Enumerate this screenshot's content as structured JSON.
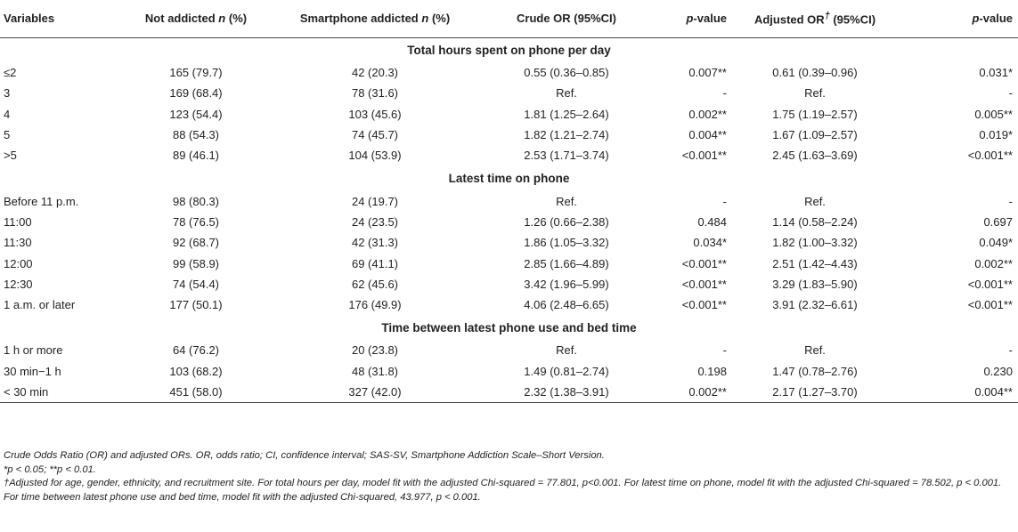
{
  "table": {
    "headers": [
      "Variables",
      "Not addicted",
      "n",
      "(%)",
      "Smartphone addicted",
      "n",
      "(%)",
      "Crude OR (95%CI)",
      "p",
      "-value",
      "Adjusted OR",
      "†",
      "(95%CI)",
      "p",
      "-value"
    ],
    "sections": [
      {
        "title": "Total hours spent on phone per day",
        "rows": [
          [
            "≤2",
            "165 (79.7)",
            "42 (20.3)",
            "0.55 (0.36–0.85)",
            "0.007**",
            "0.61 (0.39–0.96)",
            "0.031*"
          ],
          [
            "3",
            "169 (68.4)",
            "78 (31.6)",
            "Ref.",
            "-",
            "Ref.",
            "-"
          ],
          [
            "4",
            "123 (54.4)",
            "103 (45.6)",
            "1.81 (1.25–2.64)",
            "0.002**",
            "1.75 (1.19–2.57)",
            "0.005**"
          ],
          [
            "5",
            "88 (54.3)",
            "74 (45.7)",
            "1.82 (1.21–2.74)",
            "0.004**",
            "1.67 (1.09–2.57)",
            "0.019*"
          ],
          [
            ">5",
            "89 (46.1)",
            "104 (53.9)",
            "2.53 (1.71–3.74)",
            "<0.001**",
            "2.45 (1.63–3.69)",
            "<0.001**"
          ]
        ]
      },
      {
        "title": "Latest time on phone",
        "rows": [
          [
            "Before 11 p.m.",
            "98 (80.3)",
            "24 (19.7)",
            "Ref.",
            "-",
            "Ref.",
            "-"
          ],
          [
            "11:00",
            "78 (76.5)",
            "24 (23.5)",
            "1.26 (0.66–2.38)",
            "0.484",
            "1.14 (0.58–2.24)",
            "0.697"
          ],
          [
            "11:30",
            "92 (68.7)",
            "42 (31.3)",
            "1.86 (1.05–3.32)",
            "0.034*",
            "1.82 (1.00–3.32)",
            "0.049*"
          ],
          [
            "12:00",
            "99 (58.9)",
            "69 (41.1)",
            "2.85 (1.66–4.89)",
            "<0.001**",
            "2.51 (1.42–4.43)",
            "0.002**"
          ],
          [
            "12:30",
            "74 (54.4)",
            "62 (45.6)",
            "3.42 (1.96–5.99)",
            "<0.001**",
            "3.29 (1.83–5.90)",
            "<0.001**"
          ],
          [
            "1 a.m. or later",
            "177 (50.1)",
            "176 (49.9)",
            "4.06 (2.48–6.65)",
            "<0.001**",
            "3.91 (2.32–6.61)",
            "<0.001**"
          ]
        ]
      },
      {
        "title": "Time between latest phone use and bed time",
        "rows": [
          [
            "1 h or more",
            "64 (76.2)",
            "20 (23.8)",
            "Ref.",
            "-",
            "Ref.",
            "-"
          ],
          [
            "30 min−1 h",
            "103 (68.2)",
            "48 (31.8)",
            "1.49 (0.81–2.74)",
            "0.198",
            "1.47 (0.78–2.76)",
            "0.230"
          ],
          [
            "< 30 min",
            "451 (58.0)",
            "327 (42.0)",
            "2.32 (1.38–3.91)",
            "0.002**",
            "2.17 (1.27–3.70)",
            "0.004**"
          ]
        ]
      }
    ]
  },
  "notes": [
    "Crude Odds Ratio (OR) and adjusted ORs. OR, odds ratio; CI, confidence interval; SAS-SV, Smartphone Addiction Scale–Short Version.",
    "*p < 0.05; **p < 0.01.",
    "†Adjusted for age, gender, ethnicity, and recruitment site. For total hours per day, model fit with the adjusted Chi-squared = 77.801, p<0.001. For latest time on phone, model fit with the adjusted Chi-squared = 78.502, p < 0.001. For time between latest phone use and bed time, model fit with the adjusted Chi-squared, 43.977, p < 0.001."
  ]
}
